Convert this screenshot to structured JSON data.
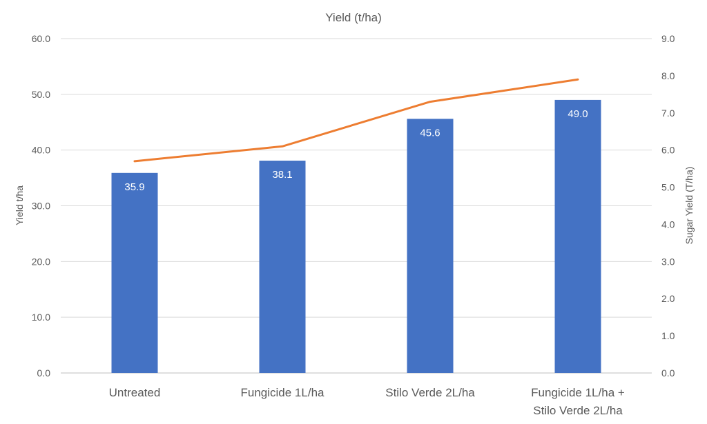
{
  "chart_data": {
    "type": "bar",
    "title": "Yield (t/ha)",
    "categories": [
      [
        "Untreated"
      ],
      [
        "Fungicide 1L/ha"
      ],
      [
        "Stilo Verde 2L/ha"
      ],
      [
        "Fungicide 1L/ha +",
        "Stilo Verde 2L/ha"
      ]
    ],
    "ylabel": "Yield t/ha",
    "y2label": "Sugar Yield (T/ha)",
    "ylim": [
      0,
      60
    ],
    "y2lim": [
      0,
      9
    ],
    "yticks": [
      "0.0",
      "10.0",
      "20.0",
      "30.0",
      "40.0",
      "50.0",
      "60.0"
    ],
    "y2ticks": [
      "0.0",
      "1.0",
      "2.0",
      "3.0",
      "4.0",
      "5.0",
      "6.0",
      "7.0",
      "8.0",
      "9.0"
    ],
    "grid": true,
    "series": [
      {
        "type": "bar",
        "axis": "left",
        "values": [
          35.9,
          38.1,
          45.6,
          49.0
        ],
        "labels": [
          "35.9",
          "38.1",
          "45.6",
          "49.0"
        ],
        "color": "#4472C4"
      },
      {
        "type": "line",
        "axis": "right",
        "values": [
          5.7,
          6.1,
          7.3,
          7.9
        ],
        "color": "#ED7D31"
      }
    ]
  }
}
